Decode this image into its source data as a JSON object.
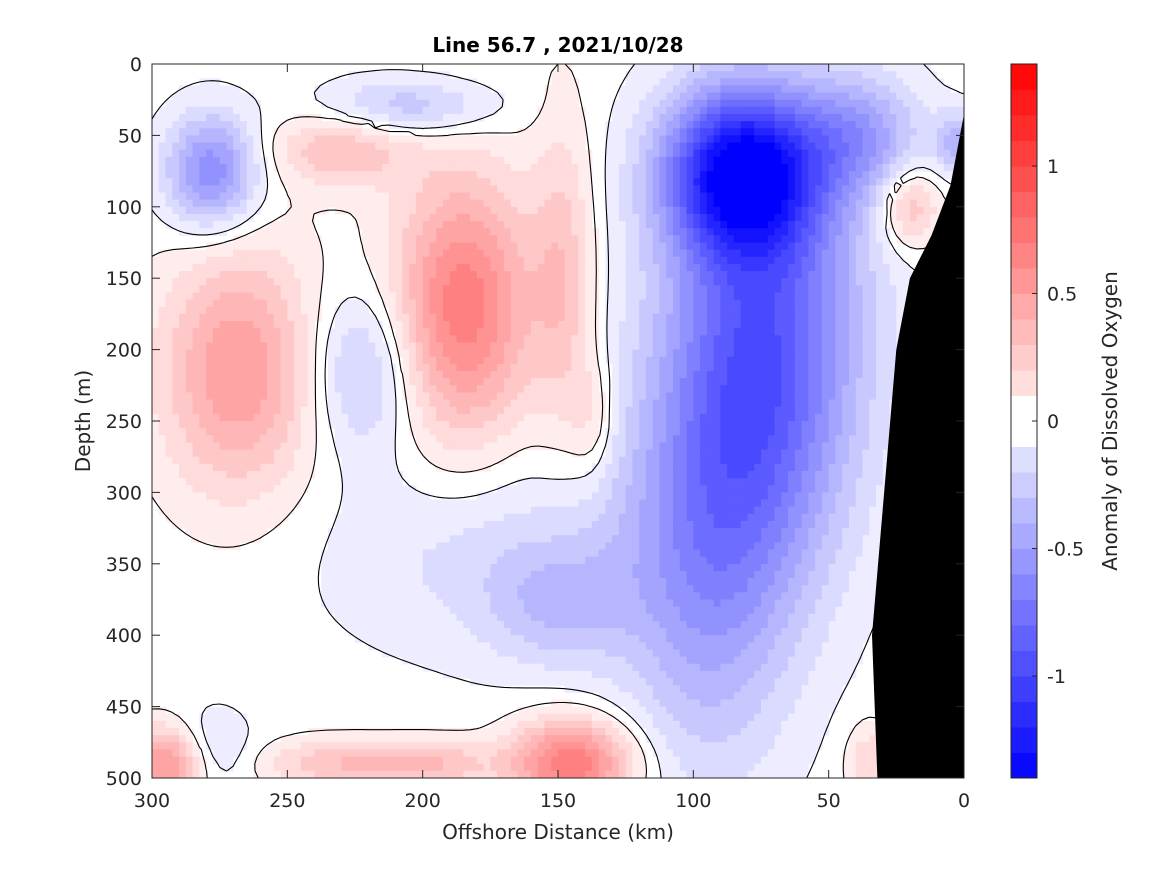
{
  "chart_data": {
    "type": "heatmap",
    "subtype": "filled-contour section",
    "title": "Line 56.7 , 2021/10/28",
    "xlabel": "Offshore Distance (km)",
    "ylabel": "Depth (m)",
    "colorbar_label": "Anomaly of Dissolved Oxygen",
    "xlim": [
      300,
      0
    ],
    "x_reversed": true,
    "ylim": [
      0,
      500
    ],
    "y_reversed": true,
    "x_ticks": [
      300,
      250,
      200,
      150,
      100,
      50,
      0
    ],
    "y_ticks": [
      0,
      50,
      100,
      150,
      200,
      250,
      300,
      350,
      400,
      450,
      500
    ],
    "colorbar_range": [
      -1.4,
      1.4
    ],
    "colorbar_ticks": [
      1,
      0.5,
      0,
      -0.5,
      -1
    ],
    "colorbar_tick_labels": [
      "1",
      "0.5",
      "0",
      "-0.5",
      "-1"
    ],
    "contour_levels_step": 0.1,
    "colormap": "blue-white-red diverging",
    "colors": {
      "negative": "#0000ff",
      "zero": "#ffffff",
      "positive": "#ff0000",
      "bathymetry": "#000000",
      "zero_contour": "#000000"
    },
    "zero_contour_shown": true,
    "bathymetry_mask": true,
    "grid": false,
    "features": [
      {
        "sign": "negative",
        "x": 82,
        "y": 75,
        "peak": -1.25,
        "sx": 20,
        "sy": 40
      },
      {
        "sign": "negative",
        "x": 73,
        "y": 175,
        "peak": -0.75,
        "sx": 26,
        "sy": 90
      },
      {
        "sign": "negative",
        "x": 86,
        "y": 290,
        "peak": -0.55,
        "sx": 26,
        "sy": 80
      },
      {
        "sign": "negative",
        "x": 95,
        "y": 410,
        "peak": -0.3,
        "sx": 22,
        "sy": 80
      },
      {
        "sign": "negative",
        "x": 38,
        "y": 50,
        "peak": -0.45,
        "sx": 16,
        "sy": 30
      },
      {
        "sign": "negative",
        "x": 278,
        "y": 75,
        "peak": -0.65,
        "sx": 12,
        "sy": 28
      },
      {
        "sign": "negative",
        "x": 205,
        "y": 30,
        "peak": -0.35,
        "sx": 22,
        "sy": 14
      },
      {
        "sign": "negative",
        "x": 222,
        "y": 215,
        "peak": -0.35,
        "sx": 14,
        "sy": 40
      },
      {
        "sign": "negative",
        "x": 170,
        "y": 345,
        "peak": -0.2,
        "sx": 45,
        "sy": 50
      },
      {
        "sign": "negative",
        "x": 150,
        "y": 380,
        "peak": -0.25,
        "sx": 18,
        "sy": 30
      },
      {
        "sign": "negative",
        "x": 2,
        "y": 55,
        "peak": -0.4,
        "sx": 6,
        "sy": 15
      },
      {
        "sign": "negative",
        "x": 278,
        "y": 480,
        "peak": -0.2,
        "sx": 10,
        "sy": 20
      },
      {
        "sign": "positive",
        "x": 185,
        "y": 170,
        "peak": 0.72,
        "sx": 18,
        "sy": 65
      },
      {
        "sign": "positive",
        "x": 268,
        "y": 215,
        "peak": 0.55,
        "sx": 20,
        "sy": 60
      },
      {
        "sign": "positive",
        "x": 230,
        "y": 60,
        "peak": 0.35,
        "sx": 18,
        "sy": 18
      },
      {
        "sign": "positive",
        "x": 145,
        "y": 490,
        "peak": 0.75,
        "sx": 16,
        "sy": 22
      },
      {
        "sign": "positive",
        "x": 295,
        "y": 490,
        "peak": 0.6,
        "sx": 10,
        "sy": 18
      },
      {
        "sign": "positive",
        "x": 230,
        "y": 490,
        "peak": 0.35,
        "sx": 20,
        "sy": 12
      },
      {
        "sign": "positive",
        "x": 195,
        "y": 490,
        "peak": 0.3,
        "sx": 15,
        "sy": 12
      },
      {
        "sign": "positive",
        "x": 148,
        "y": 150,
        "peak": 0.3,
        "sx": 8,
        "sy": 80
      },
      {
        "sign": "positive",
        "x": 137,
        "y": 250,
        "peak": 0.2,
        "sx": 6,
        "sy": 30
      },
      {
        "sign": "positive",
        "x": 20,
        "y": 100,
        "peak": 0.4,
        "sx": 8,
        "sy": 20
      },
      {
        "sign": "positive",
        "x": 35,
        "y": 490,
        "peak": 0.25,
        "sx": 6,
        "sy": 20
      }
    ],
    "bathymetry_outline": [
      [
        32,
        500
      ],
      [
        34,
        400
      ],
      [
        25,
        200
      ],
      [
        20,
        150
      ],
      [
        12,
        120
      ],
      [
        5,
        85
      ],
      [
        0,
        35
      ],
      [
        0,
        500
      ]
    ]
  }
}
